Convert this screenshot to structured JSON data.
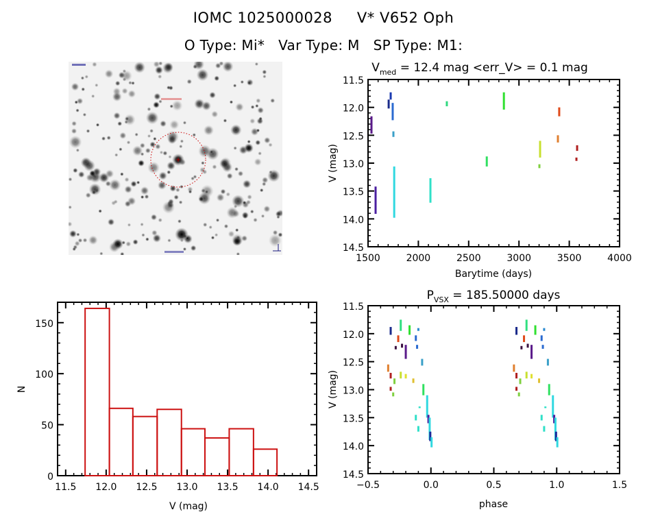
{
  "header": {
    "title_id": "IOMC 1025000028",
    "title_name": "V* V652 Oph",
    "otype": "O Type: Mi*",
    "vartype": "Var Type: M",
    "sptype": "SP Type: M1:"
  },
  "image_panel": {
    "description": "DSS finder chart (greyscale star field) with red dotted circle around target",
    "marker_color": "#cc0000"
  },
  "chart_data": [
    {
      "id": "light_curve",
      "type": "scatter",
      "title": "V_med = 12.4 mag <err_V> = 0.1 mag",
      "title_main": "V",
      "title_sub": "med",
      "title_rest": " = 12.4 mag <err_V> = 0.1 mag",
      "xlabel": "Barytime (days)",
      "ylabel": "V (mag)",
      "xlim": [
        1500,
        4000
      ],
      "ylim": [
        14.5,
        11.5
      ],
      "y_inverted": true,
      "xticks": [
        "1500",
        "2000",
        "2500",
        "3000",
        "3500",
        "4000"
      ],
      "xtick_values": [
        1500,
        2000,
        2500,
        3000,
        3500,
        4000
      ],
      "yticks": [
        "11.5",
        "12.0",
        "12.5",
        "13.0",
        "13.5",
        "14.0",
        "14.5"
      ],
      "ytick_values": [
        11.5,
        12.0,
        12.5,
        13.0,
        13.5,
        14.0,
        14.5
      ],
      "segments": [
        {
          "x": 1534,
          "vmin": 12.16,
          "vmax": 12.47,
          "color": "#5a1a8a"
        },
        {
          "x": 1575,
          "vmin": 13.42,
          "vmax": 13.91,
          "color": "#4b1fa0"
        },
        {
          "x": 1705,
          "vmin": 11.86,
          "vmax": 12.02,
          "color": "#1a2a8a"
        },
        {
          "x": 1725,
          "vmin": 11.73,
          "vmax": 11.86,
          "color": "#1a3ab0"
        },
        {
          "x": 1745,
          "vmin": 11.92,
          "vmax": 12.23,
          "color": "#2a6ad0"
        },
        {
          "x": 1752,
          "vmin": 12.43,
          "vmax": 12.53,
          "color": "#3aa0c8"
        },
        {
          "x": 1760,
          "vmin": 13.06,
          "vmax": 13.98,
          "color": "#30d8e0"
        },
        {
          "x": 2120,
          "vmin": 13.27,
          "vmax": 13.71,
          "color": "#30e0c8"
        },
        {
          "x": 2283,
          "vmin": 11.89,
          "vmax": 11.98,
          "color": "#30d880"
        },
        {
          "x": 2680,
          "vmin": 12.88,
          "vmax": 13.06,
          "color": "#30e060"
        },
        {
          "x": 2850,
          "vmin": 11.73,
          "vmax": 12.04,
          "color": "#30e030"
        },
        {
          "x": 3210,
          "vmin": 12.6,
          "vmax": 12.9,
          "color": "#c8e030"
        },
        {
          "x": 3203,
          "vmin": 13.02,
          "vmax": 13.09,
          "color": "#80d040"
        },
        {
          "x": 3400,
          "vmin": 12.0,
          "vmax": 12.16,
          "color": "#e04a1a"
        },
        {
          "x": 3387,
          "vmin": 12.5,
          "vmax": 12.63,
          "color": "#e08030"
        },
        {
          "x": 3578,
          "vmin": 12.68,
          "vmax": 12.78,
          "color": "#b02020"
        },
        {
          "x": 3571,
          "vmin": 12.9,
          "vmax": 12.96,
          "color": "#b02020"
        }
      ]
    },
    {
      "id": "histogram",
      "type": "bar",
      "title": "",
      "xlabel": "V (mag)",
      "ylabel": "N",
      "xlim": [
        11.4,
        14.6
      ],
      "ylim": [
        0,
        170
      ],
      "xticks": [
        "11.5",
        "12.0",
        "12.5",
        "13.0",
        "13.5",
        "14.0",
        "14.5"
      ],
      "xtick_values": [
        11.5,
        12.0,
        12.5,
        13.0,
        13.5,
        14.0,
        14.5
      ],
      "yticks": [
        "0",
        "50",
        "100",
        "150"
      ],
      "ytick_values": [
        0,
        50,
        100,
        150
      ],
      "bin_edges": [
        11.74,
        12.04,
        12.33,
        12.63,
        12.93,
        13.22,
        13.52,
        13.82,
        14.11
      ],
      "values": [
        164,
        66,
        58,
        65,
        46,
        37,
        46,
        26
      ],
      "bar_color": "#cc1111"
    },
    {
      "id": "phase_curve",
      "type": "scatter",
      "title": "P_vsx = 185.50000 days",
      "title_main": "P",
      "title_sub": "VSX",
      "title_rest": " = 185.50000 days",
      "xlabel": "phase",
      "ylabel": "V (mag)",
      "xlim": [
        -0.5,
        1.5
      ],
      "ylim": [
        14.5,
        11.5
      ],
      "y_inverted": true,
      "xticks": [
        "-0.5",
        "0.0",
        "0.5",
        "1.0",
        "1.5"
      ],
      "xtick_values": [
        -0.5,
        0.0,
        0.5,
        1.0,
        1.5
      ],
      "yticks": [
        "11.5",
        "12.0",
        "12.5",
        "13.0",
        "13.5",
        "14.0",
        "14.5"
      ],
      "ytick_values": [
        11.5,
        12.0,
        12.5,
        13.0,
        13.5,
        14.0,
        14.5
      ],
      "period_days": 185.5,
      "segments": [
        {
          "x": -0.32,
          "vmin": 11.88,
          "vmax": 12.02,
          "color": "#1a2a8a"
        },
        {
          "x": -0.24,
          "vmin": 11.75,
          "vmax": 11.95,
          "color": "#30e080"
        },
        {
          "x": -0.17,
          "vmin": 11.85,
          "vmax": 12.02,
          "color": "#30e030"
        },
        {
          "x": -0.1,
          "vmin": 11.9,
          "vmax": 11.95,
          "color": "#2a8ad0"
        },
        {
          "x": -0.12,
          "vmin": 12.03,
          "vmax": 12.13,
          "color": "#2a6ad0"
        },
        {
          "x": -0.11,
          "vmin": 12.2,
          "vmax": 12.27,
          "color": "#2a6ad0"
        },
        {
          "x": -0.26,
          "vmin": 12.03,
          "vmax": 12.15,
          "color": "#e04a1a"
        },
        {
          "x": -0.28,
          "vmin": 12.22,
          "vmax": 12.28,
          "color": "#3a1040"
        },
        {
          "x": -0.23,
          "vmin": 12.18,
          "vmax": 12.25,
          "color": "#3a1040"
        },
        {
          "x": -0.2,
          "vmin": 12.2,
          "vmax": 12.45,
          "color": "#5a1a8a"
        },
        {
          "x": -0.07,
          "vmin": 12.45,
          "vmax": 12.57,
          "color": "#3aa0c8"
        },
        {
          "x": -0.34,
          "vmin": 12.55,
          "vmax": 12.68,
          "color": "#e08030"
        },
        {
          "x": -0.32,
          "vmin": 12.7,
          "vmax": 12.8,
          "color": "#b02020"
        },
        {
          "x": -0.29,
          "vmin": 12.8,
          "vmax": 12.9,
          "color": "#80d040"
        },
        {
          "x": -0.24,
          "vmin": 12.68,
          "vmax": 12.8,
          "color": "#c8e030"
        },
        {
          "x": -0.2,
          "vmin": 12.72,
          "vmax": 12.8,
          "color": "#e0e030"
        },
        {
          "x": -0.14,
          "vmin": 12.8,
          "vmax": 12.88,
          "color": "#e0c030"
        },
        {
          "x": -0.32,
          "vmin": 12.95,
          "vmax": 13.02,
          "color": "#b02020"
        },
        {
          "x": -0.3,
          "vmin": 13.05,
          "vmax": 13.12,
          "color": "#80d040"
        },
        {
          "x": -0.06,
          "vmin": 12.9,
          "vmax": 13.1,
          "color": "#30e060"
        },
        {
          "x": -0.03,
          "vmin": 13.1,
          "vmax": 13.5,
          "color": "#30d8e0"
        },
        {
          "x": -0.09,
          "vmin": 13.3,
          "vmax": 13.33,
          "color": "#30e0c8"
        },
        {
          "x": -0.12,
          "vmin": 13.45,
          "vmax": 13.55,
          "color": "#30e0c8"
        },
        {
          "x": -0.1,
          "vmin": 13.65,
          "vmax": 13.75,
          "color": "#30e0c8"
        },
        {
          "x": -0.02,
          "vmin": 13.45,
          "vmax": 13.6,
          "color": "#4b1fa0"
        },
        {
          "x": -0.01,
          "vmin": 13.5,
          "vmax": 13.9,
          "color": "#30d8e0"
        },
        {
          "x": -0.005,
          "vmin": 13.75,
          "vmax": 13.92,
          "color": "#1a2a9a"
        },
        {
          "x": 0.005,
          "vmin": 13.85,
          "vmax": 14.03,
          "color": "#30d8e0"
        }
      ]
    }
  ]
}
